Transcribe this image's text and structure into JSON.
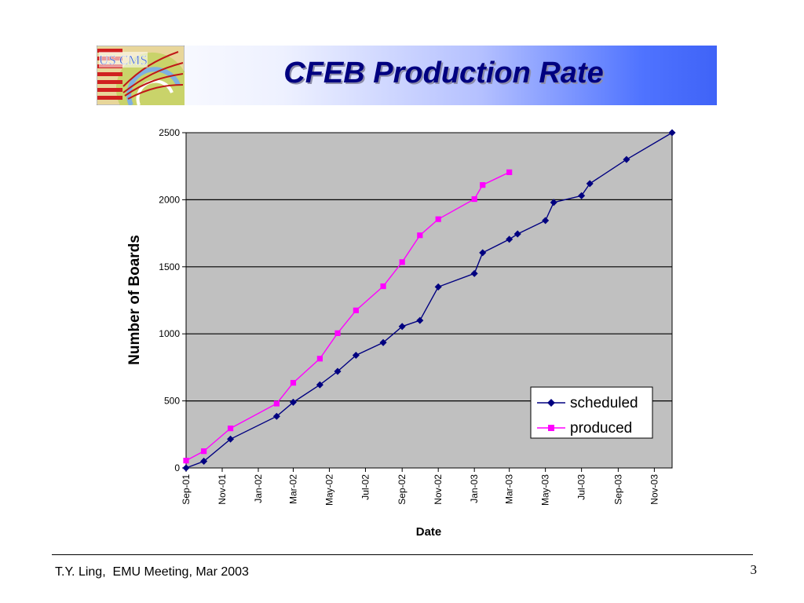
{
  "slide": {
    "title": "CFEB Production Rate",
    "footer": "T.Y. Ling,  EMU Meeting, Mar 2003",
    "page_number": "3",
    "logo_text": "US CMS"
  },
  "colors": {
    "plot_background": "#c0c0c0",
    "scheduled": "#000080",
    "produced": "#ff00ff",
    "title": "#000080",
    "header_gradient_end": "#3f63f7"
  },
  "chart_data": {
    "type": "line",
    "title": "",
    "xlabel": "Date",
    "ylabel": "Number of Boards",
    "xlim": [
      "2001-09-01",
      "2003-12-01"
    ],
    "ylim": [
      0,
      2500
    ],
    "yticks": [
      0,
      500,
      1000,
      1500,
      2000,
      2500
    ],
    "xticks": [
      {
        "date": "2001-09-01",
        "label": "Sep-01"
      },
      {
        "date": "2001-11-01",
        "label": "Nov-01"
      },
      {
        "date": "2002-01-01",
        "label": "Jan-02"
      },
      {
        "date": "2002-03-01",
        "label": "Mar-02"
      },
      {
        "date": "2002-05-01",
        "label": "May-02"
      },
      {
        "date": "2002-07-01",
        "label": "Jul-02"
      },
      {
        "date": "2002-09-01",
        "label": "Sep-02"
      },
      {
        "date": "2002-11-01",
        "label": "Nov-02"
      },
      {
        "date": "2003-01-01",
        "label": "Jan-03"
      },
      {
        "date": "2003-03-01",
        "label": "Mar-03"
      },
      {
        "date": "2003-05-01",
        "label": "May-03"
      },
      {
        "date": "2003-07-01",
        "label": "Jul-03"
      },
      {
        "date": "2003-09-01",
        "label": "Sep-03"
      },
      {
        "date": "2003-11-01",
        "label": "Nov-03"
      }
    ],
    "grid": "horizontal",
    "legend": "bottom-right",
    "series": [
      {
        "name": "scheduled",
        "marker": "diamond",
        "color": "#000080",
        "points": [
          {
            "x": "2001-09-01",
            "y": 0
          },
          {
            "x": "2001-10-01",
            "y": 50
          },
          {
            "x": "2001-11-15",
            "y": 215
          },
          {
            "x": "2002-02-01",
            "y": 385
          },
          {
            "x": "2002-03-01",
            "y": 490
          },
          {
            "x": "2002-04-15",
            "y": 620
          },
          {
            "x": "2002-05-15",
            "y": 720
          },
          {
            "x": "2002-06-15",
            "y": 840
          },
          {
            "x": "2002-07-31",
            "y": 935
          },
          {
            "x": "2002-09-01",
            "y": 1055
          },
          {
            "x": "2002-10-01",
            "y": 1100
          },
          {
            "x": "2002-11-01",
            "y": 1350
          },
          {
            "x": "2003-01-01",
            "y": 1450
          },
          {
            "x": "2003-01-15",
            "y": 1605
          },
          {
            "x": "2003-03-01",
            "y": 1705
          },
          {
            "x": "2003-03-15",
            "y": 1745
          },
          {
            "x": "2003-05-01",
            "y": 1845
          },
          {
            "x": "2003-05-15",
            "y": 1980
          },
          {
            "x": "2003-07-01",
            "y": 2030
          },
          {
            "x": "2003-07-15",
            "y": 2120
          },
          {
            "x": "2003-09-15",
            "y": 2300
          },
          {
            "x": "2003-12-01",
            "y": 2500
          }
        ]
      },
      {
        "name": "produced",
        "marker": "square",
        "color": "#ff00ff",
        "points": [
          {
            "x": "2001-09-01",
            "y": 55
          },
          {
            "x": "2001-10-01",
            "y": 125
          },
          {
            "x": "2001-11-15",
            "y": 295
          },
          {
            "x": "2002-02-01",
            "y": 480
          },
          {
            "x": "2002-03-01",
            "y": 635
          },
          {
            "x": "2002-04-15",
            "y": 815
          },
          {
            "x": "2002-05-15",
            "y": 1005
          },
          {
            "x": "2002-06-15",
            "y": 1175
          },
          {
            "x": "2002-07-31",
            "y": 1355
          },
          {
            "x": "2002-09-01",
            "y": 1535
          },
          {
            "x": "2002-10-01",
            "y": 1735
          },
          {
            "x": "2002-11-01",
            "y": 1855
          },
          {
            "x": "2003-01-01",
            "y": 2005
          },
          {
            "x": "2003-01-15",
            "y": 2110
          },
          {
            "x": "2003-03-01",
            "y": 2205
          }
        ]
      }
    ]
  }
}
